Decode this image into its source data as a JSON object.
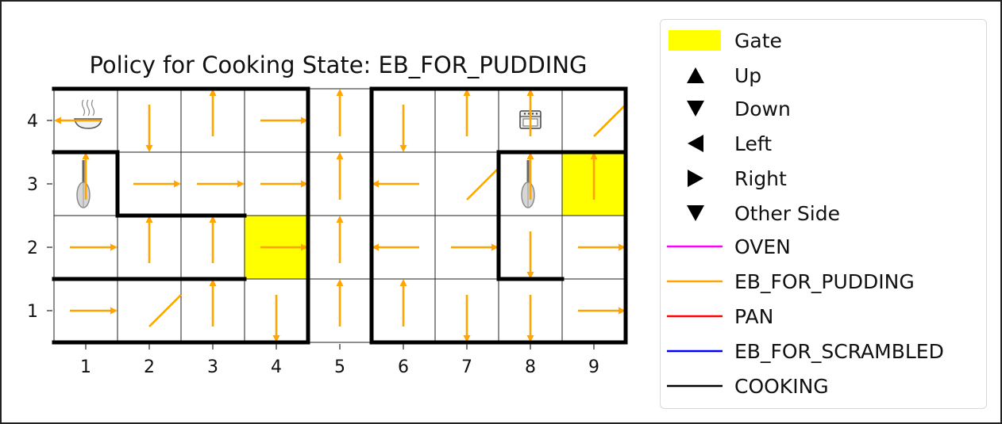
{
  "chart_data": {
    "type": "grid-policy",
    "title": "Policy for Cooking State: EB_FOR_PUDDING",
    "x_ticks": [
      "1",
      "2",
      "3",
      "4",
      "5",
      "6",
      "7",
      "8",
      "9"
    ],
    "y_ticks": [
      "1",
      "2",
      "3",
      "4"
    ],
    "xlim": [
      0.5,
      9.5
    ],
    "ylim": [
      0.5,
      4.5
    ],
    "arrow_color": "#FFA500",
    "gate_color": "#FFFF00",
    "gates": [
      {
        "x": 4,
        "y": 2
      },
      {
        "x": 9,
        "y": 3
      }
    ],
    "policy": [
      {
        "x": 1,
        "y": 4,
        "action": "Left"
      },
      {
        "x": 2,
        "y": 4,
        "action": "Down"
      },
      {
        "x": 3,
        "y": 4,
        "action": "Up"
      },
      {
        "x": 4,
        "y": 4,
        "action": "Right"
      },
      {
        "x": 5,
        "y": 4,
        "action": "Up"
      },
      {
        "x": 6,
        "y": 4,
        "action": "Down"
      },
      {
        "x": 7,
        "y": 4,
        "action": "Up"
      },
      {
        "x": 8,
        "y": 4,
        "action": "Up"
      },
      {
        "x": 9,
        "y": 4,
        "action": "Other Side"
      },
      {
        "x": 1,
        "y": 3,
        "action": "Up"
      },
      {
        "x": 2,
        "y": 3,
        "action": "Right"
      },
      {
        "x": 3,
        "y": 3,
        "action": "Right"
      },
      {
        "x": 4,
        "y": 3,
        "action": "Right"
      },
      {
        "x": 5,
        "y": 3,
        "action": "Up"
      },
      {
        "x": 6,
        "y": 3,
        "action": "Left"
      },
      {
        "x": 7,
        "y": 3,
        "action": "Other Side"
      },
      {
        "x": 8,
        "y": 3,
        "action": "Up"
      },
      {
        "x": 9,
        "y": 3,
        "action": "Up"
      },
      {
        "x": 1,
        "y": 2,
        "action": "Right"
      },
      {
        "x": 2,
        "y": 2,
        "action": "Up"
      },
      {
        "x": 3,
        "y": 2,
        "action": "Up"
      },
      {
        "x": 4,
        "y": 2,
        "action": "Right"
      },
      {
        "x": 5,
        "y": 2,
        "action": "Up"
      },
      {
        "x": 6,
        "y": 2,
        "action": "Left"
      },
      {
        "x": 7,
        "y": 2,
        "action": "Right"
      },
      {
        "x": 8,
        "y": 2,
        "action": "Down"
      },
      {
        "x": 9,
        "y": 2,
        "action": "Right"
      },
      {
        "x": 1,
        "y": 1,
        "action": "Right"
      },
      {
        "x": 2,
        "y": 1,
        "action": "Other Side"
      },
      {
        "x": 3,
        "y": 1,
        "action": "Up"
      },
      {
        "x": 4,
        "y": 1,
        "action": "Down"
      },
      {
        "x": 5,
        "y": 1,
        "action": "Up"
      },
      {
        "x": 6,
        "y": 1,
        "action": "Up"
      },
      {
        "x": 7,
        "y": 1,
        "action": "Down"
      },
      {
        "x": 8,
        "y": 1,
        "action": "Down"
      },
      {
        "x": 9,
        "y": 1,
        "action": "Right"
      }
    ],
    "items": [
      {
        "x": 1,
        "y": 4,
        "icon": "bowl-icon"
      },
      {
        "x": 8,
        "y": 4,
        "icon": "oven-icon"
      },
      {
        "x": 1,
        "y": 3,
        "icon": "whisk-icon"
      },
      {
        "x": 8,
        "y": 3,
        "icon": "whisk-icon"
      }
    ],
    "walls": [
      {
        "x1": 4.5,
        "y1": 0.5,
        "x2": 4.5,
        "y2": 4.5
      },
      {
        "x1": 5.5,
        "y1": 0.5,
        "x2": 5.5,
        "y2": 4.5
      },
      {
        "x1": 0.5,
        "y1": 3.5,
        "x2": 1.5,
        "y2": 3.5
      },
      {
        "x1": 1.5,
        "y1": 3.5,
        "x2": 1.5,
        "y2": 2.5
      },
      {
        "x1": 1.5,
        "y1": 2.5,
        "x2": 3.5,
        "y2": 2.5
      },
      {
        "x1": 0.5,
        "y1": 1.5,
        "x2": 3.5,
        "y2": 1.5
      },
      {
        "x1": 7.5,
        "y1": 3.5,
        "x2": 9.5,
        "y2": 3.5
      },
      {
        "x1": 7.5,
        "y1": 3.5,
        "x2": 7.5,
        "y2": 1.5
      },
      {
        "x1": 7.5,
        "y1": 1.5,
        "x2": 8.5,
        "y2": 1.5
      },
      {
        "x1": 0.5,
        "y1": 0.5,
        "x2": 4.5,
        "y2": 0.5
      },
      {
        "x1": 5.5,
        "y1": 0.5,
        "x2": 9.5,
        "y2": 0.5
      },
      {
        "x1": 0.5,
        "y1": 4.5,
        "x2": 4.5,
        "y2": 4.5
      },
      {
        "x1": 5.5,
        "y1": 4.5,
        "x2": 9.5,
        "y2": 4.5
      },
      {
        "x1": 9.5,
        "y1": 0.5,
        "x2": 9.5,
        "y2": 4.5
      }
    ],
    "legend": [
      {
        "label": "Gate",
        "kind": "patch",
        "color": "#FFFF00"
      },
      {
        "label": "Up",
        "kind": "marker",
        "marker": "up"
      },
      {
        "label": "Down",
        "kind": "marker",
        "marker": "down"
      },
      {
        "label": "Left",
        "kind": "marker",
        "marker": "left"
      },
      {
        "label": "Right",
        "kind": "marker",
        "marker": "right"
      },
      {
        "label": "Other Side",
        "kind": "marker",
        "marker": "down"
      },
      {
        "label": "OVEN",
        "kind": "line",
        "color": "#FF00FF"
      },
      {
        "label": "EB_FOR_PUDDING",
        "kind": "line",
        "color": "#FFA500"
      },
      {
        "label": "PAN",
        "kind": "line",
        "color": "#FF0000"
      },
      {
        "label": "EB_FOR_SCRAMBLED",
        "kind": "line",
        "color": "#0000FF"
      },
      {
        "label": "COOKING",
        "kind": "line",
        "color": "#000000"
      }
    ]
  }
}
